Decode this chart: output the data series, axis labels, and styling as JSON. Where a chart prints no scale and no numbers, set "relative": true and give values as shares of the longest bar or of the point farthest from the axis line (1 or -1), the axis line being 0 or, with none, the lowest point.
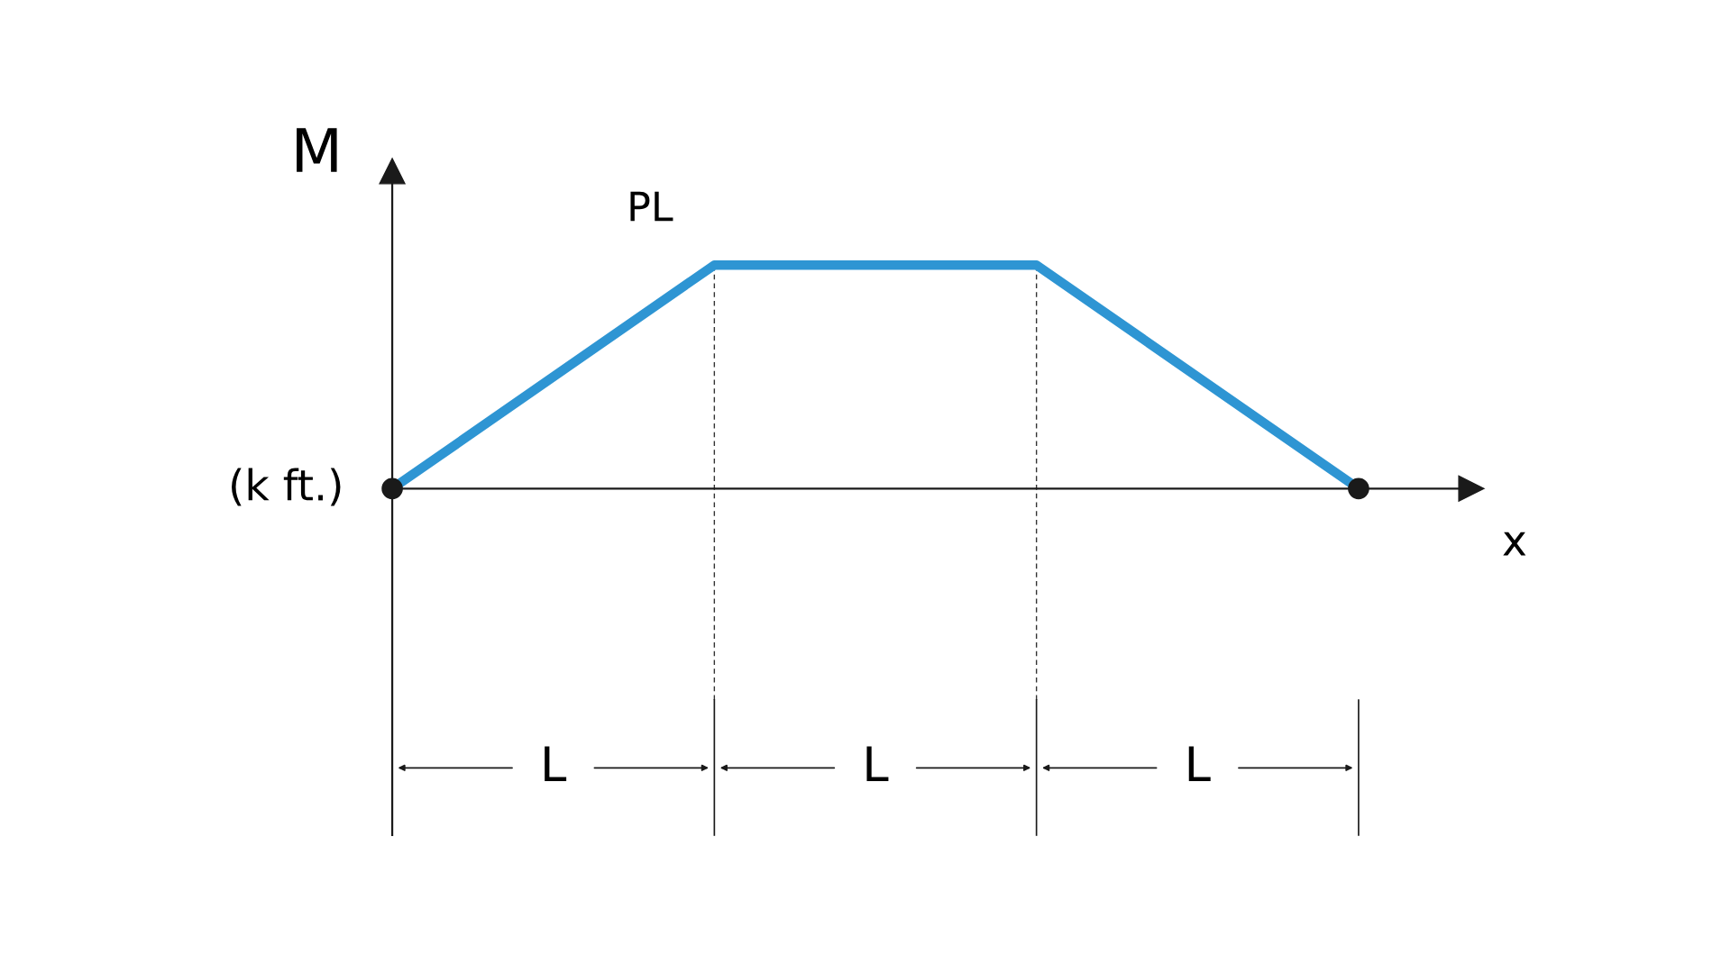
{
  "chart_data": {
    "type": "line",
    "relative": true,
    "xlabel": "x",
    "ylabel": "M",
    "categories": [
      null,
      null,
      null,
      null
    ],
    "series": [
      {
        "color": "#2e95d3",
        "values": [
          0,
          1,
          1,
          0
        ]
      }
    ],
    "grid": false,
    "legend": false,
    "annotations": [
      "PL",
      "(k ft.)",
      "L",
      "L",
      "L"
    ]
  }
}
